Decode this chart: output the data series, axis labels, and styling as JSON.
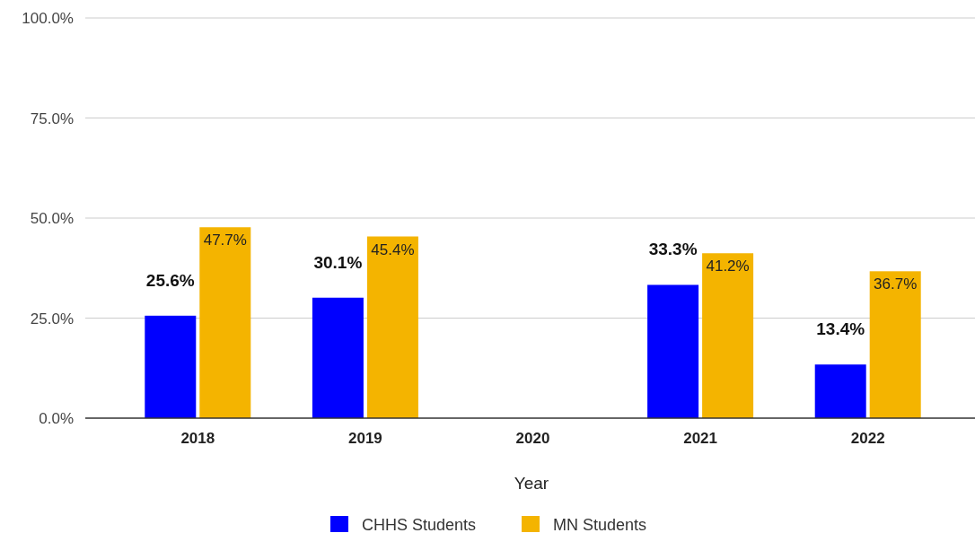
{
  "chart_data": {
    "type": "bar",
    "xlabel": "Year",
    "categories": [
      "2018",
      "2019",
      "2020",
      "2021",
      "2022"
    ],
    "series": [
      {
        "name": "CHHS Students",
        "color": "#0000ff",
        "values": [
          25.6,
          30.1,
          null,
          33.3,
          13.4
        ],
        "value_labels": [
          "25.6%",
          "30.1%",
          null,
          "33.3%",
          "13.4%"
        ]
      },
      {
        "name": "MN Students",
        "color": "#f4b400",
        "values": [
          47.7,
          45.4,
          null,
          41.2,
          36.7
        ],
        "value_labels": [
          "47.7%",
          "45.4%",
          null,
          "41.2%",
          "36.7%"
        ]
      }
    ],
    "ylim": [
      0,
      100
    ],
    "yticks": [
      {
        "value": 0,
        "label": "0.0%"
      },
      {
        "value": 25,
        "label": "25.0%"
      },
      {
        "value": 50,
        "label": "50.0%"
      },
      {
        "value": 75,
        "label": "75.0%"
      },
      {
        "value": 100,
        "label": "100.0%"
      }
    ],
    "grid": "y",
    "legend": "bottom"
  }
}
